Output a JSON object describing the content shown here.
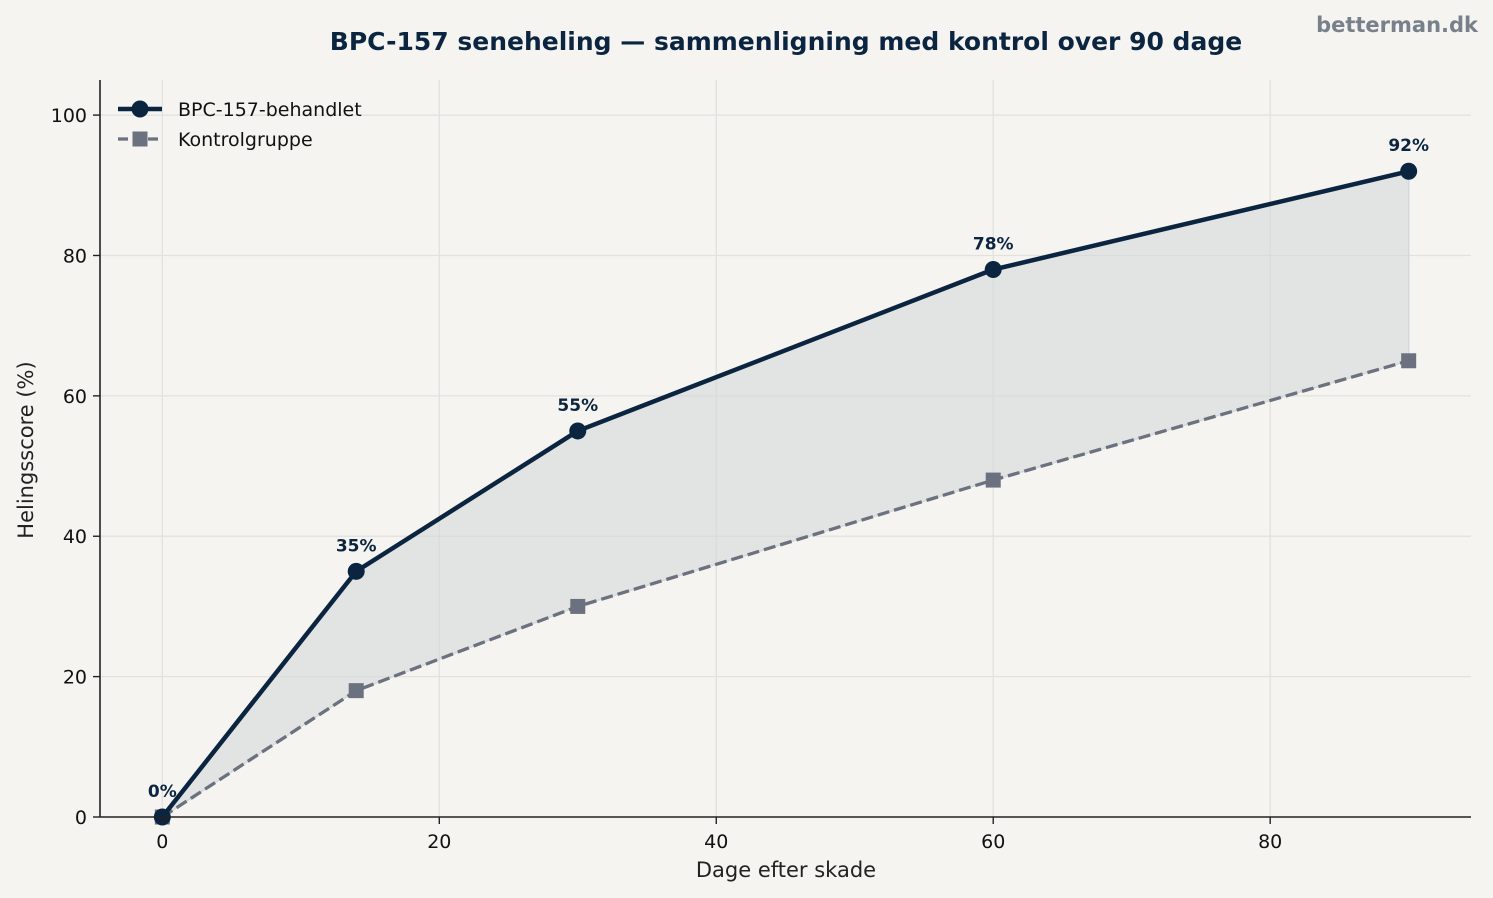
{
  "brand": "betterman.dk",
  "chart_data": {
    "type": "line",
    "title": "BPC-157 seneheling — sammenligning med kontrol over 90 dage",
    "xlabel": "Dage efter skade",
    "ylabel": "Helingsscore (%)",
    "x": [
      0,
      14,
      30,
      60,
      90
    ],
    "xlim": [
      -4.5,
      94.5
    ],
    "ylim": [
      0,
      105
    ],
    "xticks": [
      0,
      20,
      40,
      60,
      80
    ],
    "yticks": [
      0,
      20,
      40,
      60,
      80,
      100
    ],
    "grid": true,
    "legend_position": "top-left",
    "fill_between_series": true,
    "series": [
      {
        "name": "BPC-157-behandlet",
        "values": [
          0,
          35,
          55,
          78,
          92
        ],
        "data_labels": [
          "0%",
          "35%",
          "55%",
          "78%",
          "92%"
        ],
        "color": "#0b2540",
        "marker": "circle",
        "line_style": "solid"
      },
      {
        "name": "Kontrolgruppe",
        "values": [
          0,
          18,
          30,
          48,
          65
        ],
        "color": "#6b717e",
        "marker": "square",
        "line_style": "dashed"
      }
    ],
    "fill_color": "#d4d8db"
  }
}
